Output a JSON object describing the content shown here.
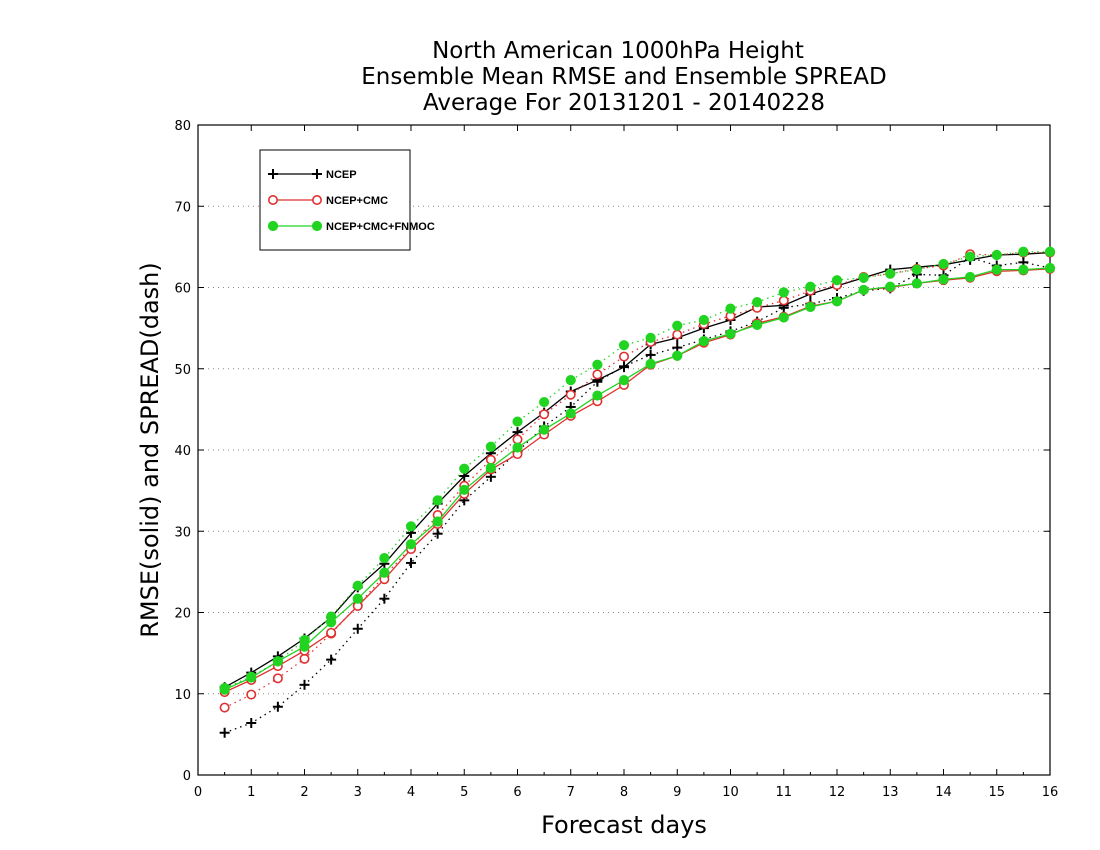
{
  "chart_data": {
    "type": "line",
    "title": [
      "North American 1000hPa Height",
      "Ensemble Mean RMSE and Ensemble SPREAD",
      "Average For 20131201 - 20140228"
    ],
    "xlabel": "Forecast days",
    "ylabel": "RMSE(solid) and SPREAD(dash)",
    "xlim": [
      0,
      16
    ],
    "ylim": [
      0,
      80
    ],
    "xticks": [
      "0",
      "1",
      "2",
      "3",
      "4",
      "5",
      "6",
      "7",
      "8",
      "9",
      "10",
      "11",
      "12",
      "13",
      "14",
      "15",
      "16"
    ],
    "yticks": [
      "0",
      "10",
      "20",
      "30",
      "40",
      "50",
      "60",
      "70",
      "80"
    ],
    "grid": "horizontal dotted",
    "legend_position": "top-left",
    "x": [
      0.5,
      1,
      1.5,
      2,
      2.5,
      3,
      3.5,
      4,
      4.5,
      5,
      5.5,
      6,
      6.5,
      7,
      7.5,
      8,
      8.5,
      9,
      9.5,
      10,
      10.5,
      11,
      11.5,
      12,
      12.5,
      13,
      13.5,
      14,
      14.5,
      15,
      15.5,
      16
    ],
    "series": [
      {
        "name": "NCEP",
        "color": "#000000",
        "marker": "plus",
        "rmse": [
          10.8,
          12.6,
          14.6,
          16.8,
          19.4,
          23.1,
          26.0,
          29.8,
          33.4,
          36.8,
          39.6,
          42.2,
          44.6,
          47.2,
          48.6,
          50.2,
          53.0,
          53.8,
          55.0,
          56.0,
          57.6,
          57.8,
          59.2,
          60.2,
          61.2,
          62.2,
          62.5,
          62.8,
          63.4,
          64.0,
          64.1,
          64.3
        ],
        "spread": [
          5.2,
          6.4,
          8.4,
          11.1,
          14.2,
          18.0,
          21.7,
          26.1,
          29.7,
          33.8,
          36.7,
          39.8,
          42.9,
          45.3,
          48.4,
          50.3,
          51.7,
          52.6,
          53.6,
          54.6,
          55.8,
          57.5,
          58.0,
          58.7,
          59.6,
          59.9,
          61.6,
          61.5,
          63.7,
          62.7,
          63.1,
          62.4
        ]
      },
      {
        "name": "NCEP+CMC",
        "color": "#e03030",
        "marker": "open-circle",
        "rmse": [
          10.2,
          11.7,
          13.4,
          15.3,
          17.5,
          20.8,
          24.1,
          27.8,
          30.9,
          34.6,
          37.6,
          39.5,
          41.9,
          44.2,
          46.0,
          48.0,
          50.5,
          51.6,
          53.2,
          54.2,
          55.6,
          56.4,
          57.7,
          58.3,
          59.7,
          60.0,
          60.5,
          60.9,
          61.2,
          62.0,
          62.1,
          62.3
        ],
        "spread": [
          8.3,
          9.9,
          11.9,
          14.3,
          17.4,
          20.9,
          24.5,
          28.0,
          32.0,
          35.6,
          38.8,
          41.3,
          44.4,
          46.8,
          49.3,
          51.5,
          53.3,
          54.2,
          55.5,
          56.5,
          57.5,
          58.4,
          59.6,
          60.3,
          61.3,
          61.7,
          62.3,
          62.7,
          64.1,
          64.0,
          64.3,
          64.3
        ]
      },
      {
        "name": "NCEP+CMC+FNMOC",
        "color": "#22d422",
        "marker": "filled-circle",
        "rmse": [
          10.5,
          12.0,
          14.0,
          15.8,
          18.8,
          21.7,
          24.9,
          28.4,
          31.2,
          35.1,
          37.8,
          40.3,
          42.5,
          44.5,
          46.7,
          48.6,
          50.6,
          51.6,
          53.4,
          54.3,
          55.4,
          56.3,
          57.6,
          58.3,
          59.7,
          60.1,
          60.5,
          61.0,
          61.3,
          62.2,
          62.2,
          62.4
        ],
        "spread": [
          10.7,
          12.1,
          14.0,
          16.6,
          19.5,
          23.3,
          26.7,
          30.6,
          33.8,
          37.7,
          40.4,
          43.5,
          45.9,
          48.6,
          50.5,
          52.9,
          53.8,
          55.3,
          56.0,
          57.4,
          58.2,
          59.4,
          60.1,
          60.9,
          61.2,
          61.7,
          62.2,
          62.9,
          63.8,
          64.0,
          64.4,
          64.4
        ]
      }
    ]
  }
}
